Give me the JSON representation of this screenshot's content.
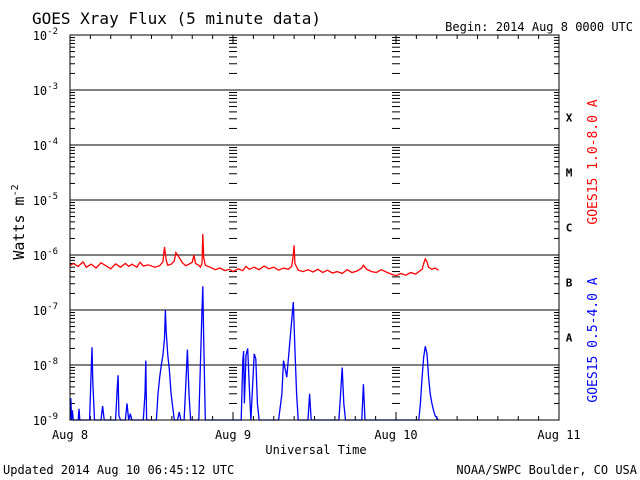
{
  "header": {
    "title": "GOES Xray Flux (5 minute data)",
    "begin": "Begin:  2014 Aug 8 0000 UTC"
  },
  "footer": {
    "updated": "Updated 2014 Aug 10 06:45:12 UTC",
    "credit": "NOAA/SWPC Boulder, CO USA"
  },
  "colors": {
    "long_channel": "#ff0000",
    "short_channel": "#0000ff",
    "axes": "#000000",
    "background": "#ffffff"
  },
  "chart_data": {
    "type": "line",
    "title": "GOES Xray Flux (5 minute data)",
    "xlabel": "Universal Time",
    "ylabel": "Watts m",
    "ylabel_superscript": "-2",
    "yscale": "log",
    "ylim": [
      1e-09,
      0.01
    ],
    "xlim_days": [
      0,
      3
    ],
    "x_ticks": [
      "Aug 8",
      "Aug 9",
      "Aug 10",
      "Aug 11"
    ],
    "y_ticks": [
      {
        "base": "10",
        "exp": "-2",
        "value": 0.01
      },
      {
        "base": "10",
        "exp": "-3",
        "value": 0.001
      },
      {
        "base": "10",
        "exp": "-4",
        "value": 0.0001
      },
      {
        "base": "10",
        "exp": "-5",
        "value": 1e-05
      },
      {
        "base": "10",
        "exp": "-6",
        "value": 1e-06
      },
      {
        "base": "10",
        "exp": "-7",
        "value": 1e-07
      },
      {
        "base": "10",
        "exp": "-8",
        "value": 1e-08
      },
      {
        "base": "10",
        "exp": "-9",
        "value": 1e-09
      }
    ],
    "flare_classes": [
      {
        "label": "X",
        "value": 0.000316
      },
      {
        "label": "M",
        "value": 3.16e-05
      },
      {
        "label": "C",
        "value": 3.16e-06
      },
      {
        "label": "B",
        "value": 3.16e-07
      },
      {
        "label": "A",
        "value": 3.16e-08
      }
    ],
    "grid": true,
    "series": [
      {
        "name": "GOES15 1.0-8.0 A",
        "color": "#ff0000",
        "points": [
          [
            0.0,
            6.5e-07
          ],
          [
            0.02,
            7e-07
          ],
          [
            0.05,
            6.2e-07
          ],
          [
            0.08,
            7.5e-07
          ],
          [
            0.1,
            6e-07
          ],
          [
            0.13,
            6.8e-07
          ],
          [
            0.16,
            5.8e-07
          ],
          [
            0.19,
            7.2e-07
          ],
          [
            0.22,
            6.4e-07
          ],
          [
            0.25,
            5.6e-07
          ],
          [
            0.28,
            6.9e-07
          ],
          [
            0.31,
            6e-07
          ],
          [
            0.34,
            7e-07
          ],
          [
            0.36,
            6.2e-07
          ],
          [
            0.38,
            6.8e-07
          ],
          [
            0.41,
            6e-07
          ],
          [
            0.43,
            7.4e-07
          ],
          [
            0.45,
            6.3e-07
          ],
          [
            0.48,
            6.6e-07
          ],
          [
            0.52,
            6e-07
          ],
          [
            0.55,
            6.4e-07
          ],
          [
            0.57,
            7.5e-07
          ],
          [
            0.58,
            1.4e-06
          ],
          [
            0.59,
            8e-07
          ],
          [
            0.6,
            6.5e-07
          ],
          [
            0.62,
            6.8e-07
          ],
          [
            0.64,
            7.8e-07
          ],
          [
            0.65,
            1.1e-06
          ],
          [
            0.67,
            9e-07
          ],
          [
            0.69,
            7.2e-07
          ],
          [
            0.71,
            6.4e-07
          ],
          [
            0.73,
            6.8e-07
          ],
          [
            0.75,
            7.4e-07
          ],
          [
            0.76,
            1e-06
          ],
          [
            0.77,
            7e-07
          ],
          [
            0.79,
            6.5e-07
          ],
          [
            0.8,
            6e-07
          ],
          [
            0.81,
            7e-07
          ],
          [
            0.815,
            2.4e-06
          ],
          [
            0.82,
            9e-07
          ],
          [
            0.83,
            6.5e-07
          ],
          [
            0.86,
            6e-07
          ],
          [
            0.89,
            5.4e-07
          ],
          [
            0.92,
            5.8e-07
          ],
          [
            0.95,
            5.2e-07
          ],
          [
            0.98,
            5.5e-07
          ],
          [
            1.0,
            5e-07
          ],
          [
            1.03,
            5.6e-07
          ],
          [
            1.06,
            5.2e-07
          ],
          [
            1.08,
            6.2e-07
          ],
          [
            1.1,
            5.5e-07
          ],
          [
            1.13,
            6e-07
          ],
          [
            1.16,
            5.4e-07
          ],
          [
            1.19,
            6.3e-07
          ],
          [
            1.22,
            5.6e-07
          ],
          [
            1.25,
            6e-07
          ],
          [
            1.28,
            5.3e-07
          ],
          [
            1.31,
            5.8e-07
          ],
          [
            1.34,
            5.5e-07
          ],
          [
            1.36,
            6.2e-07
          ],
          [
            1.37,
            1e-06
          ],
          [
            1.375,
            1.5e-06
          ],
          [
            1.38,
            7e-07
          ],
          [
            1.4,
            5.3e-07
          ],
          [
            1.43,
            5e-07
          ],
          [
            1.46,
            5.4e-07
          ],
          [
            1.49,
            4.9e-07
          ],
          [
            1.52,
            5.5e-07
          ],
          [
            1.55,
            4.8e-07
          ],
          [
            1.58,
            5.3e-07
          ],
          [
            1.61,
            4.7e-07
          ],
          [
            1.64,
            5e-07
          ],
          [
            1.67,
            4.6e-07
          ],
          [
            1.7,
            5.4e-07
          ],
          [
            1.73,
            4.8e-07
          ],
          [
            1.76,
            5.1e-07
          ],
          [
            1.79,
            5.8e-07
          ],
          [
            1.8,
            6.5e-07
          ],
          [
            1.82,
            5.5e-07
          ],
          [
            1.85,
            5e-07
          ],
          [
            1.88,
            4.8e-07
          ],
          [
            1.91,
            5.4e-07
          ],
          [
            1.94,
            4.9e-07
          ],
          [
            1.97,
            4.5e-07
          ],
          [
            2.0,
            4.2e-07
          ],
          [
            2.03,
            4.6e-07
          ],
          [
            2.06,
            4.3e-07
          ],
          [
            2.09,
            4.8e-07
          ],
          [
            2.12,
            4.5e-07
          ],
          [
            2.14,
            5e-07
          ],
          [
            2.16,
            5.5e-07
          ],
          [
            2.17,
            7e-07
          ],
          [
            2.18,
            8.5e-07
          ],
          [
            2.19,
            7.5e-07
          ],
          [
            2.2,
            6e-07
          ],
          [
            2.22,
            5.5e-07
          ],
          [
            2.24,
            5.8e-07
          ],
          [
            2.26,
            5.3e-07
          ]
        ]
      },
      {
        "name": "GOES15 0.5-4.0 A",
        "color": "#0000ff",
        "points": [
          [
            0.0,
            1e-09
          ],
          [
            0.005,
            2.5e-09
          ],
          [
            0.01,
            1e-09
          ],
          [
            0.015,
            1.5e-09
          ],
          [
            0.02,
            1e-09
          ],
          [
            0.05,
            1e-09
          ],
          [
            0.055,
            1.6e-09
          ],
          [
            0.06,
            1e-09
          ],
          [
            0.1,
            1e-09
          ],
          [
            0.12,
            1e-09
          ],
          [
            0.13,
            8e-09
          ],
          [
            0.135,
            2.1e-08
          ],
          [
            0.14,
            5e-09
          ],
          [
            0.15,
            1e-09
          ],
          [
            0.17,
            1e-09
          ],
          [
            0.19,
            1e-09
          ],
          [
            0.2,
            1.8e-09
          ],
          [
            0.21,
            1e-09
          ],
          [
            0.26,
            1e-09
          ],
          [
            0.28,
            1e-09
          ],
          [
            0.29,
            4e-09
          ],
          [
            0.295,
            6.5e-09
          ],
          [
            0.3,
            1.2e-09
          ],
          [
            0.31,
            1e-09
          ],
          [
            0.34,
            1e-09
          ],
          [
            0.35,
            2e-09
          ],
          [
            0.36,
            1e-09
          ],
          [
            0.37,
            1.3e-09
          ],
          [
            0.38,
            1e-09
          ],
          [
            0.43,
            1e-09
          ],
          [
            0.45,
            1e-09
          ],
          [
            0.46,
            3e-09
          ],
          [
            0.465,
            1.2e-08
          ],
          [
            0.47,
            1e-09
          ],
          [
            0.49,
            1e-09
          ],
          [
            0.53,
            1e-09
          ],
          [
            0.54,
            3e-09
          ],
          [
            0.55,
            6e-09
          ],
          [
            0.56,
            1e-08
          ],
          [
            0.57,
            1.5e-08
          ],
          [
            0.58,
            3e-08
          ],
          [
            0.585,
            1e-07
          ],
          [
            0.59,
            4e-08
          ],
          [
            0.6,
            1.5e-08
          ],
          [
            0.61,
            8e-09
          ],
          [
            0.62,
            3e-09
          ],
          [
            0.64,
            1e-09
          ],
          [
            0.66,
            1e-09
          ],
          [
            0.67,
            1.4e-09
          ],
          [
            0.68,
            1e-09
          ],
          [
            0.7,
            1e-09
          ],
          [
            0.71,
            4e-09
          ],
          [
            0.72,
            1.9e-08
          ],
          [
            0.73,
            3e-09
          ],
          [
            0.74,
            1e-09
          ],
          [
            0.77,
            1e-09
          ],
          [
            0.79,
            1e-09
          ],
          [
            0.8,
            1e-08
          ],
          [
            0.81,
            1e-07
          ],
          [
            0.815,
            2.7e-07
          ],
          [
            0.82,
            3e-08
          ],
          [
            0.83,
            1e-09
          ],
          [
            0.85,
            1e-09
          ],
          [
            0.9,
            1e-09
          ],
          [
            0.95,
            1e-09
          ],
          [
            1.0,
            1e-09
          ],
          [
            1.05,
            1e-09
          ],
          [
            1.06,
            1.2e-08
          ],
          [
            1.065,
            1.8e-08
          ],
          [
            1.07,
            2e-09
          ],
          [
            1.08,
            1.5e-08
          ],
          [
            1.09,
            2e-08
          ],
          [
            1.1,
            4e-09
          ],
          [
            1.11,
            1e-09
          ],
          [
            1.13,
            1.6e-08
          ],
          [
            1.14,
            1.3e-08
          ],
          [
            1.15,
            2e-09
          ],
          [
            1.16,
            1e-09
          ],
          [
            1.2,
            1e-09
          ],
          [
            1.25,
            1e-09
          ],
          [
            1.28,
            1e-09
          ],
          [
            1.3,
            3e-09
          ],
          [
            1.31,
            1.2e-08
          ],
          [
            1.33,
            6e-09
          ],
          [
            1.35,
            3e-08
          ],
          [
            1.37,
            1.4e-07
          ],
          [
            1.38,
            2e-08
          ],
          [
            1.39,
            3e-09
          ],
          [
            1.4,
            1e-09
          ],
          [
            1.44,
            1e-09
          ],
          [
            1.46,
            1e-09
          ],
          [
            1.47,
            3e-09
          ],
          [
            1.48,
            1e-09
          ],
          [
            1.55,
            1e-09
          ],
          [
            1.62,
            1e-09
          ],
          [
            1.65,
            1e-09
          ],
          [
            1.66,
            3e-09
          ],
          [
            1.67,
            9e-09
          ],
          [
            1.68,
            2e-09
          ],
          [
            1.69,
            1e-09
          ],
          [
            1.75,
            1e-09
          ],
          [
            1.79,
            1e-09
          ],
          [
            1.8,
            4.5e-09
          ],
          [
            1.81,
            1e-09
          ],
          [
            1.86,
            1e-09
          ],
          [
            1.9,
            1e-09
          ],
          [
            1.95,
            1e-09
          ],
          [
            2.0,
            1e-09
          ],
          [
            2.05,
            1e-09
          ],
          [
            2.1,
            1e-09
          ],
          [
            2.14,
            1e-09
          ],
          [
            2.15,
            2e-09
          ],
          [
            2.16,
            6e-09
          ],
          [
            2.17,
            1.4e-08
          ],
          [
            2.18,
            2.2e-08
          ],
          [
            2.19,
            1.6e-08
          ],
          [
            2.2,
            6e-09
          ],
          [
            2.21,
            3e-09
          ],
          [
            2.22,
            2e-09
          ],
          [
            2.23,
            1.5e-09
          ],
          [
            2.24,
            1.2e-09
          ],
          [
            2.26,
            1e-09
          ]
        ]
      }
    ]
  }
}
